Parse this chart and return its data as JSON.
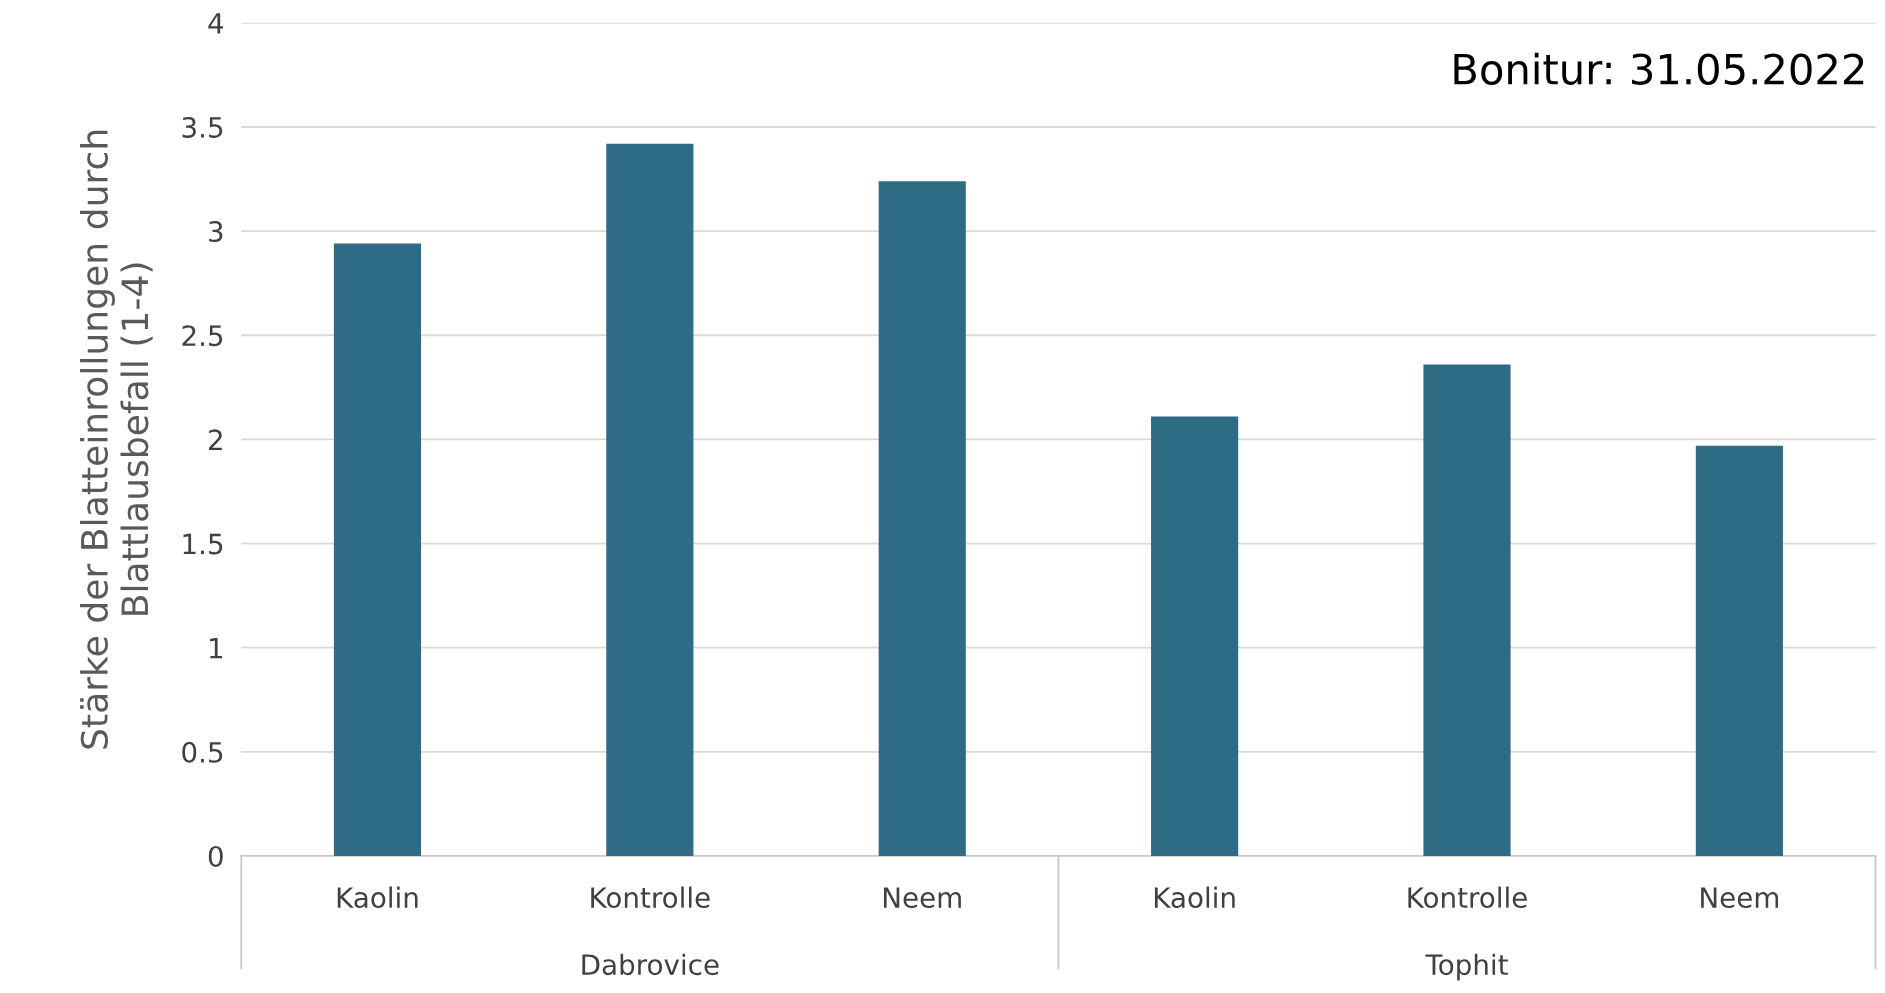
{
  "chart_data": {
    "type": "bar",
    "title": "Bonitur: 31.05.2022",
    "ylabel": "Stärke der Blatteinrollungen durch\nBlattlausbefall (1-4)",
    "categories": [
      "Kaolin",
      "Kontrolle",
      "Neem",
      "Kaolin",
      "Kontrolle",
      "Neem"
    ],
    "values": [
      2.94,
      3.42,
      3.24,
      2.11,
      2.36,
      1.97
    ],
    "color": "#2e6b85",
    "annotations": [
      "Dabrovice",
      "Tophit"
    ],
    "ylim": [
      0,
      4
    ],
    "yticks": [
      0,
      0.5,
      1,
      1.5,
      2,
      2.5,
      3,
      3.5,
      4
    ],
    "grid": "y"
  }
}
